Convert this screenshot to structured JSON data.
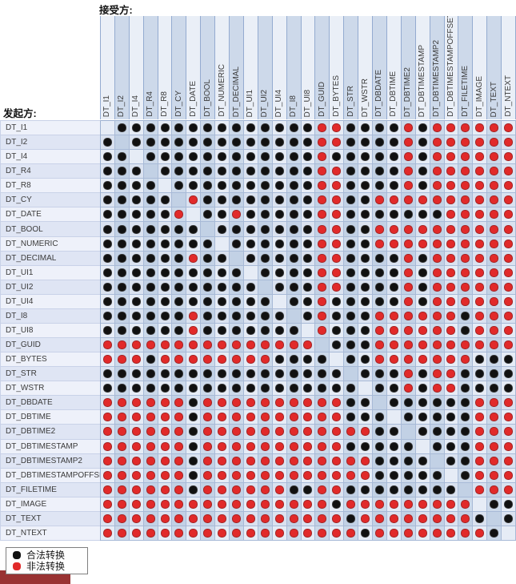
{
  "labels": {
    "receiver": "接受方:",
    "initiator": "发起方:"
  },
  "legend": {
    "legal": "合法转换",
    "illegal": "非法转换"
  },
  "colors": {
    "legal": "#111111",
    "illegal": "#e12a2a",
    "footer_bar": "#993333"
  },
  "chart_data": {
    "type": "heatmap",
    "title": "",
    "x_axis_label": "接受方:",
    "y_axis_label": "发起方:",
    "categories": [
      "DT_I1",
      "DT_I2",
      "DT_I4",
      "DT_R4",
      "DT_R8",
      "DT_CY",
      "DT_DATE",
      "DT_BOOL",
      "DT_NUMERIC",
      "DT_DECIMAL",
      "DT_UI1",
      "DT_UI2",
      "DT_UI4",
      "DT_I8",
      "DT_UI8",
      "DT_GUID",
      "DT_BYTES",
      "DT_STR",
      "DT_WSTR",
      "DT_DBDATE",
      "DT_DBTIME",
      "DT_DBTIME2",
      "DT_DBTIMESTAMP",
      "DT_DBTIMESTAMP2",
      "DT_DBTIMESTAMPOFFSET",
      "DT_FILETIME",
      "DT_IMAGE",
      "DT_TEXT",
      "DT_NTEXT"
    ],
    "encoding": {
      "B": "合法转换 (legal, black dot)",
      "R": "非法转换 (illegal, red dot)",
      ".": "same type / empty cell"
    },
    "matrix": [
      ".BBBBBBBBBBBBBBRRBBBBRBRRRRRR",
      "B.BBBBBBBBBBBBBRRBBBBRBRRRRRR",
      "BB.BBBBBBBBBBBBRBBBBBRBRRRRRR",
      "BBB.BBBBBBBBBBBRRBBBBRBRRRRRR",
      "BBBB.BBBBBBBBBBRRBBBBRBRRRRRR",
      "BBBBB.RBBBBBBBBRRBBRRRRRRRRRR",
      "BBBBBR.BBRBBBBBRRBBBBBBBRRRRR",
      "BBBBBBB.BBBBBBBRRBBRRRRRRRRRR",
      "BBBBBBBB.BBBBBBRRBBRRRRRRRRRR",
      "BBBBBBRBB.BBBBBRRBBBBRBRRRRRR",
      "BBBBBBBBBB.BBBBRRBBBBRBRRRRRR",
      "BBBBBBBBBBB.BBBRRBBBBRBRRRRRR",
      "BBBBBBBBBBBB.BBRBBBBBRBRRRRRR",
      "BBBBBBRBBBBBB.BRBBBRRRRRRBRRR",
      "BBBBBBRBBBBBBB.RBBBRRRRRRBRRR",
      "RRRRRRRRRRRRRRR.BBBRRRRRRRRRR",
      "RRRBRRRRRRRRBBBB.BBRRRRRRRBBB",
      "BBBBBBBBBBBBBBBBB.BBBRBRRBBBB",
      "BBBBBBBBBBBBBBBBBB.BBRBRRBBBB",
      "RRRRRRBRRRRRRRRRRBB.BBBBBBRRR",
      "RRRRRRBRRRRRRRRRRBBB.BBBBBRRR",
      "RRRRRRBRRRRRRRRRRRRBB.BBBBRRR",
      "RRRRRRBRRRRRRRRRRBBBBB.BBBRRR",
      "RRRRRRBRRRRRRRRRRRRBBBB.BBRRR",
      "RRRRRRBRRRRRRRRRRRRBBBBB.BRRR",
      "RRRRRRBRRRRRRBBRRBBBBBBBB.RRR",
      "RRRRRRRRRRRRRRRRBRRRRRRRRR.BB",
      "RRRRRRRRRRRRRRRRRBRRRRRRRRB.B",
      "RRRRRRRRRRRRRRRRRRBRRRRRRRRB."
    ]
  }
}
